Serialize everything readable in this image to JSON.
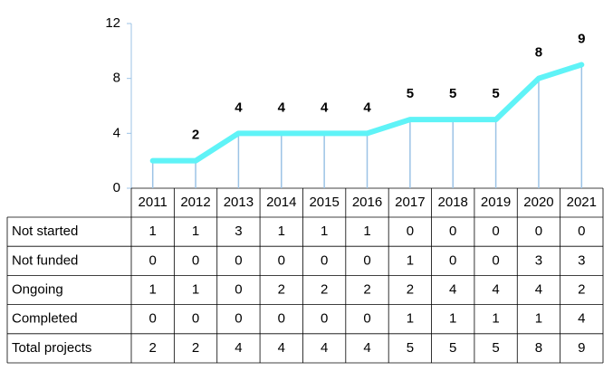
{
  "chart_data": {
    "type": "line",
    "categories": [
      "2011",
      "2012",
      "2013",
      "2014",
      "2015",
      "2016",
      "2017",
      "2018",
      "2019",
      "2020",
      "2021"
    ],
    "series": [
      {
        "name": "Not started",
        "values": [
          1,
          1,
          3,
          1,
          1,
          1,
          0,
          0,
          0,
          0,
          0
        ]
      },
      {
        "name": "Not funded",
        "values": [
          0,
          0,
          0,
          0,
          0,
          0,
          1,
          0,
          0,
          3,
          3
        ]
      },
      {
        "name": "Ongoing",
        "values": [
          1,
          1,
          0,
          2,
          2,
          2,
          2,
          4,
          4,
          4,
          2
        ]
      },
      {
        "name": "Completed",
        "values": [
          0,
          0,
          0,
          0,
          0,
          0,
          1,
          1,
          1,
          1,
          4
        ]
      },
      {
        "name": "Total projects",
        "color": "#5ff3f7",
        "values": [
          2,
          2,
          4,
          4,
          4,
          4,
          5,
          5,
          5,
          8,
          9
        ],
        "value_labels": [
          null,
          "2",
          "4",
          "4",
          "4",
          "4",
          "5",
          "5",
          "5",
          "8",
          "9"
        ]
      }
    ],
    "ylim": [
      0,
      12
    ],
    "yticks": [
      0,
      4,
      8,
      12
    ],
    "drop_lines": true
  }
}
